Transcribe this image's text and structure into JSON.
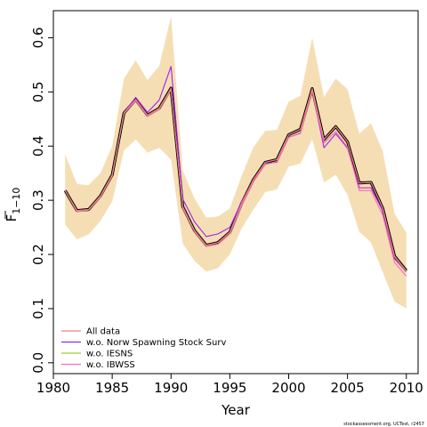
{
  "chart_data": {
    "type": "line",
    "xlabel": "Year",
    "ylabel": "F",
    "ylabel_subscript": "1−10",
    "xlim": [
      1980,
      2011
    ],
    "ylim": [
      -0.02,
      0.65
    ],
    "x_ticks": [
      1980,
      1985,
      1990,
      1995,
      2000,
      2005,
      2010
    ],
    "y_ticks": [
      0.0,
      0.1,
      0.2,
      0.3,
      0.4,
      0.5,
      0.6
    ],
    "y_tick_labels": [
      "0.0",
      "0.1",
      "0.2",
      "0.3",
      "0.4",
      "0.5",
      "0.6"
    ],
    "grid": false,
    "legend_position": "bottom-left",
    "credit": "stockassessment.org, UCTest, r2457",
    "band_color": "#f5deb3",
    "x": [
      1981,
      1982,
      1983,
      1984,
      1985,
      1986,
      1987,
      1988,
      1989,
      1990,
      1991,
      1992,
      1993,
      1994,
      1995,
      1996,
      1997,
      1998,
      1999,
      2000,
      2001,
      2002,
      2003,
      2004,
      2005,
      2006,
      2007,
      2008,
      2009,
      2010
    ],
    "band": {
      "upper": [
        0.385,
        0.33,
        0.328,
        0.35,
        0.4,
        0.525,
        0.558,
        0.522,
        0.548,
        0.64,
        0.355,
        0.303,
        0.268,
        0.27,
        0.285,
        0.345,
        0.398,
        0.428,
        0.43,
        0.482,
        0.493,
        0.6,
        0.49,
        0.525,
        0.505,
        0.423,
        0.442,
        0.39,
        0.275,
        0.24
      ],
      "lower": [
        0.255,
        0.228,
        0.237,
        0.262,
        0.298,
        0.392,
        0.412,
        0.388,
        0.397,
        0.375,
        0.22,
        0.188,
        0.168,
        0.175,
        0.2,
        0.248,
        0.283,
        0.315,
        0.32,
        0.362,
        0.368,
        0.413,
        0.333,
        0.347,
        0.31,
        0.242,
        0.222,
        0.167,
        0.113,
        0.1
      ]
    },
    "series": [
      {
        "name": "All data",
        "color": "#f08080",
        "values": [
          0.318,
          0.281,
          0.283,
          0.308,
          0.347,
          0.461,
          0.486,
          0.457,
          0.47,
          0.507,
          0.288,
          0.244,
          0.217,
          0.222,
          0.241,
          0.294,
          0.338,
          0.37,
          0.375,
          0.421,
          0.431,
          0.506,
          0.412,
          0.436,
          0.408,
          0.332,
          0.333,
          0.285,
          0.197,
          0.17
        ]
      },
      {
        "name": "w.o. Norw Spawning Stock Surv",
        "color": "#a020f0",
        "values": [
          0.318,
          0.28,
          0.283,
          0.307,
          0.347,
          0.462,
          0.49,
          0.462,
          0.485,
          0.547,
          0.302,
          0.26,
          0.233,
          0.238,
          0.25,
          0.297,
          0.337,
          0.368,
          0.37,
          0.416,
          0.424,
          0.503,
          0.397,
          0.423,
          0.396,
          0.323,
          0.323,
          0.28,
          0.192,
          0.168
        ]
      },
      {
        "name": "w.o. IESNS",
        "color": "#9acd32",
        "values": [
          0.318,
          0.281,
          0.283,
          0.308,
          0.347,
          0.461,
          0.486,
          0.457,
          0.47,
          0.506,
          0.288,
          0.244,
          0.217,
          0.222,
          0.241,
          0.294,
          0.338,
          0.37,
          0.375,
          0.421,
          0.431,
          0.506,
          0.412,
          0.436,
          0.408,
          0.332,
          0.333,
          0.285,
          0.196,
          0.169
        ]
      },
      {
        "name": "w.o. IBWSS",
        "color": "#ff69b4",
        "values": [
          0.318,
          0.279,
          0.282,
          0.306,
          0.345,
          0.46,
          0.484,
          0.455,
          0.468,
          0.504,
          0.285,
          0.242,
          0.215,
          0.219,
          0.238,
          0.29,
          0.334,
          0.366,
          0.371,
          0.416,
          0.425,
          0.501,
          0.406,
          0.427,
          0.398,
          0.318,
          0.318,
          0.272,
          0.185,
          0.16
        ]
      }
    ],
    "main_line": {
      "values": [
        0.318,
        0.281,
        0.283,
        0.308,
        0.347,
        0.461,
        0.486,
        0.457,
        0.47,
        0.507,
        0.288,
        0.244,
        0.217,
        0.222,
        0.241,
        0.294,
        0.338,
        0.37,
        0.375,
        0.421,
        0.431,
        0.506,
        0.412,
        0.436,
        0.408,
        0.332,
        0.333,
        0.285,
        0.197,
        0.17
      ],
      "color": "#000000"
    }
  }
}
